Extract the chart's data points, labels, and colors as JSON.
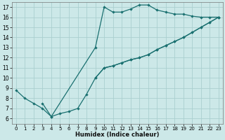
{
  "xlabel": "Humidex (Indice chaleur)",
  "bg_color": "#cce8e8",
  "grid_color": "#aacfcf",
  "line_color": "#1a7070",
  "xlim": [
    -0.5,
    23.5
  ],
  "ylim": [
    5.5,
    17.5
  ],
  "xticks": [
    0,
    1,
    2,
    3,
    4,
    5,
    6,
    7,
    8,
    9,
    10,
    11,
    12,
    13,
    14,
    15,
    16,
    17,
    18,
    19,
    20,
    21,
    22,
    23
  ],
  "yticks": [
    6,
    7,
    8,
    9,
    10,
    11,
    12,
    13,
    14,
    15,
    16,
    17
  ],
  "line1_x": [
    0,
    1,
    2,
    3,
    4,
    5,
    6,
    7,
    8,
    9,
    10,
    11,
    12,
    13,
    14,
    15,
    16,
    17,
    18,
    19,
    20,
    21,
    22,
    23
  ],
  "line1_y": [
    8.8,
    8.0,
    7.5,
    7.0,
    6.2,
    6.5,
    6.7,
    7.0,
    8.4,
    10.0,
    11.0,
    11.2,
    11.5,
    11.8,
    12.0,
    12.3,
    12.8,
    13.2,
    13.6,
    14.0,
    14.5,
    15.0,
    15.5,
    16.0
  ],
  "line2_x": [
    3,
    4,
    9,
    10,
    11,
    12,
    13,
    14,
    15,
    16,
    17,
    18,
    19,
    20,
    21,
    22,
    23
  ],
  "line2_y": [
    7.5,
    6.2,
    13.0,
    17.0,
    16.5,
    16.5,
    16.8,
    17.2,
    17.2,
    16.7,
    16.5,
    16.3,
    16.3,
    16.1,
    16.0,
    16.0,
    16.0
  ],
  "line3_x": [
    9,
    10,
    11,
    12,
    13,
    14,
    15,
    16,
    17,
    18,
    19,
    20,
    21,
    22,
    23
  ],
  "line3_y": [
    10.0,
    11.0,
    11.2,
    11.5,
    11.8,
    12.0,
    12.3,
    12.8,
    13.2,
    13.6,
    14.0,
    14.5,
    15.0,
    15.5,
    16.0
  ]
}
